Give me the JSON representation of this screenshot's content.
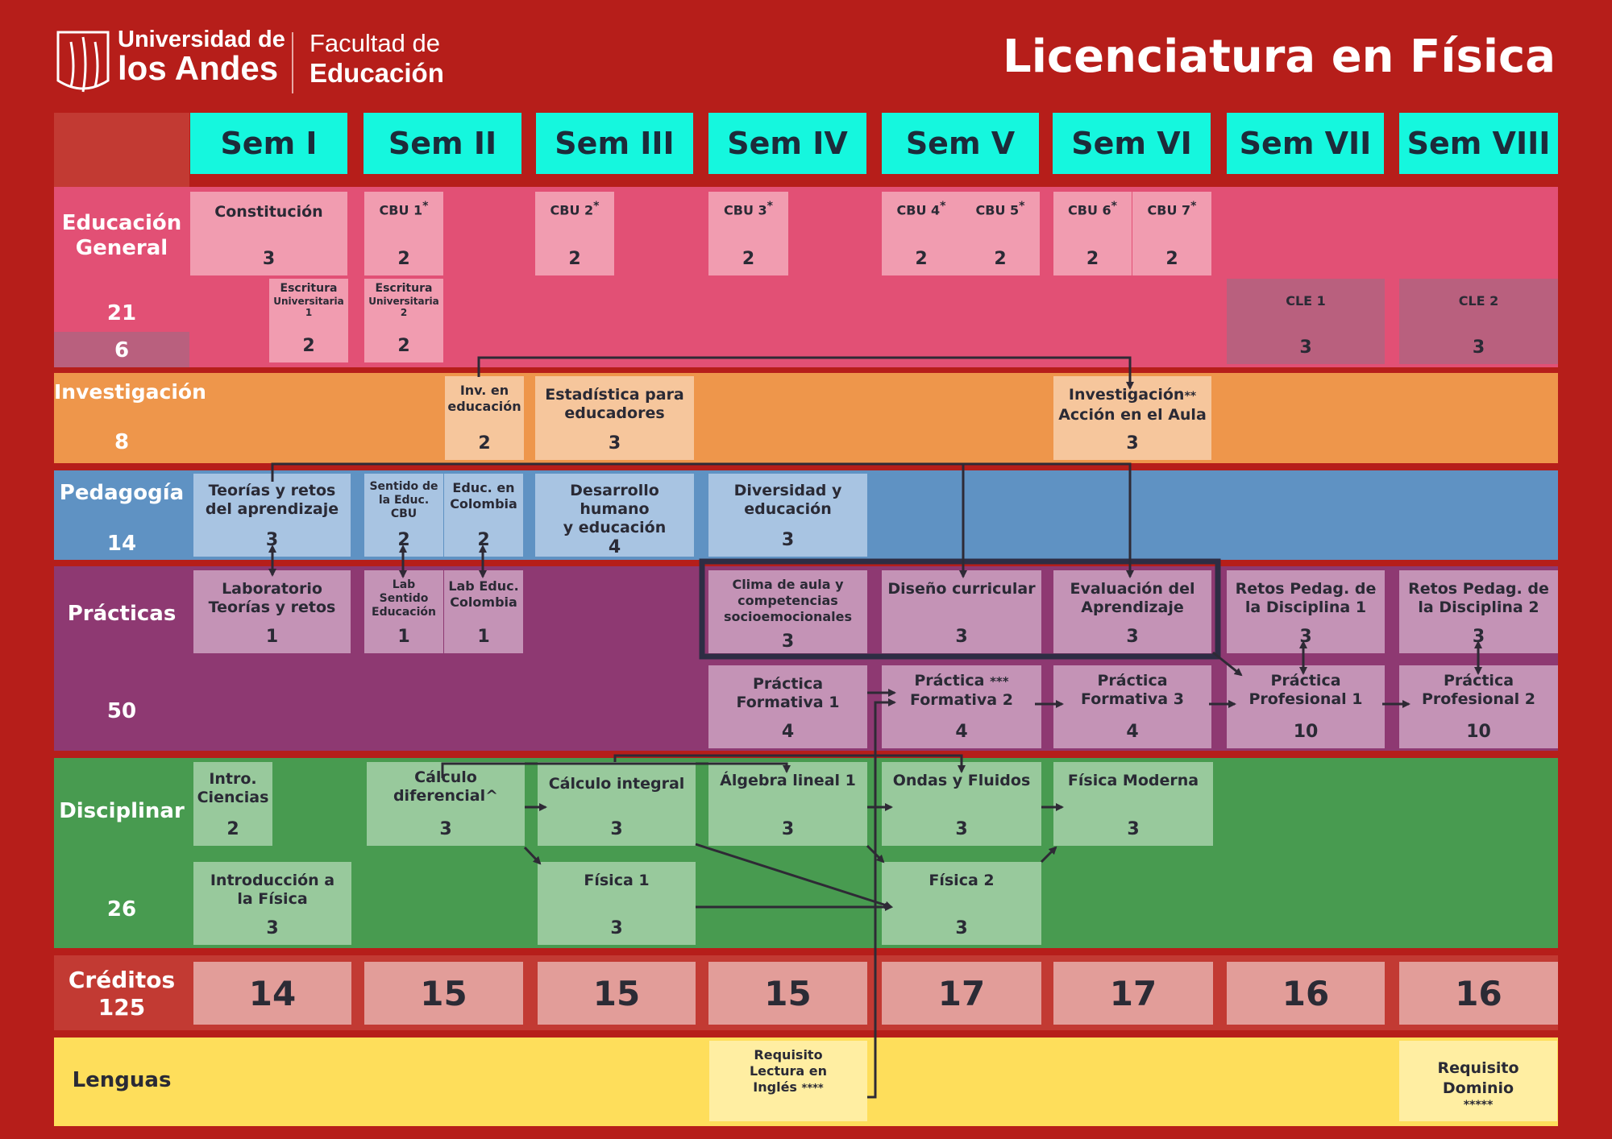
{
  "header": {
    "logo_line1": "Universidad de",
    "logo_line2": "los Andes",
    "faculty_line1": "Facultad de",
    "faculty_line2": "Educación",
    "title": "Licenciatura en Física"
  },
  "semesters": [
    "Sem I",
    "Sem II",
    "Sem III",
    "Sem IV",
    "Sem V",
    "Sem VI",
    "Sem VII",
    "Sem VIII"
  ],
  "areas": {
    "general": {
      "name_line1": "Educación",
      "name_line2": "General",
      "credits": "21",
      "extra": "6"
    },
    "investigacion": {
      "name": "Investigación",
      "credits": "8"
    },
    "pedagogia": {
      "name": "Pedagogía",
      "credits": "14"
    },
    "practicas": {
      "name": "Prácticas",
      "credits": "50"
    },
    "disciplinar": {
      "name": "Disciplinar",
      "credits": "26"
    },
    "creditos": {
      "name": "Créditos",
      "total": "125"
    },
    "lenguas": {
      "name": "Lenguas"
    }
  },
  "courses": {
    "constitucion": {
      "name": "Constitución",
      "credits": "3"
    },
    "cbu1": {
      "name": "CBU 1",
      "mark": "*",
      "credits": "2"
    },
    "cbu2": {
      "name": "CBU 2",
      "mark": "*",
      "credits": "2"
    },
    "cbu3": {
      "name": "CBU 3",
      "mark": "*",
      "credits": "2"
    },
    "cbu4": {
      "name": "CBU 4",
      "mark": "*",
      "credits": "2"
    },
    "cbu5": {
      "name": "CBU 5",
      "mark": "*",
      "credits": "2"
    },
    "cbu6": {
      "name": "CBU 6",
      "mark": "*",
      "credits": "2"
    },
    "cbu7": {
      "name": "CBU 7",
      "mark": "*",
      "credits": "2"
    },
    "escritura1": {
      "name": "Escritura",
      "sub": "Universitaria",
      "num": "1",
      "credits": "2"
    },
    "escritura2": {
      "name": "Escritura",
      "sub": "Universitaria",
      "num": "2",
      "credits": "2"
    },
    "cle1": {
      "name": "CLE 1",
      "credits": "3"
    },
    "cle2": {
      "name": "CLE 2",
      "credits": "3"
    },
    "inv_educacion": {
      "line1": "Inv. en",
      "line2": "educación",
      "credits": "2"
    },
    "estadistica": {
      "line1": "Estadística para",
      "line2": "educadores",
      "credits": "3"
    },
    "inv_accion": {
      "line1": "Investigación",
      "mark": "**",
      "line2": "Acción en el Aula",
      "credits": "3"
    },
    "teorias": {
      "line1": "Teorías y retos",
      "line2": "del aprendizaje",
      "credits": "3"
    },
    "sentido": {
      "line1": "Sentido de",
      "line2": "la Educ. CBU",
      "credits": "2"
    },
    "educ_colombia": {
      "line1": "Educ. en",
      "line2": "Colombia",
      "credits": "2"
    },
    "desarrollo": {
      "line1": "Desarrollo humano",
      "line2": "y educación",
      "credits": "4"
    },
    "diversidad": {
      "line1": "Diversidad y",
      "line2": "educación",
      "credits": "3"
    },
    "lab_teorias": {
      "line1": "Laboratorio",
      "line2": "Teorías y retos",
      "credits": "1"
    },
    "lab_sentido": {
      "line1": "Lab Sentido",
      "line2": "Educación",
      "credits": "1"
    },
    "lab_colombia": {
      "line1": "Lab Educ.",
      "line2": "Colombia",
      "credits": "1"
    },
    "clima": {
      "line1": "Clima de aula y",
      "line2": "competencias",
      "line3": "socioemocionales",
      "credits": "3"
    },
    "diseno": {
      "line1": "Diseño curricular",
      "credits": "3"
    },
    "evaluacion": {
      "line1": "Evaluación del",
      "line2": "Aprendizaje",
      "credits": "3"
    },
    "retos1": {
      "line1": "Retos Pedag. de",
      "line2": "la Disciplina 1",
      "credits": "3"
    },
    "retos2": {
      "line1": "Retos Pedag. de",
      "line2": "la Disciplina 2",
      "credits": "3"
    },
    "pf1": {
      "line1": "Práctica",
      "line2": "Formativa 1",
      "credits": "4"
    },
    "pf2": {
      "line1": "Práctica",
      "mark": "***",
      "line2": "Formativa 2",
      "credits": "4"
    },
    "pf3": {
      "line1": "Práctica",
      "line2": "Formativa 3",
      "credits": "4"
    },
    "pp1": {
      "line1": "Práctica",
      "line2": "Profesional 1",
      "credits": "10"
    },
    "pp2": {
      "line1": "Práctica",
      "line2": "Profesional 2",
      "credits": "10"
    },
    "intro_ciencias": {
      "line1": "Intro.",
      "line2": "Ciencias",
      "credits": "2"
    },
    "calc_dif": {
      "line1": "Cálculo",
      "line2": "diferencial^",
      "credits": "3"
    },
    "calc_int": {
      "line1": "Cálculo integral",
      "credits": "3"
    },
    "algebra": {
      "line1": "Álgebra lineal 1",
      "credits": "3"
    },
    "ondas": {
      "line1": "Ondas y Fluidos",
      "credits": "3"
    },
    "moderna": {
      "line1": "Física Moderna",
      "credits": "3"
    },
    "intro_fisica": {
      "line1": "Introducción a",
      "line2": "la Física",
      "credits": "3"
    },
    "fisica1": {
      "line1": "Física 1",
      "credits": "3"
    },
    "fisica2": {
      "line1": "Física 2",
      "credits": "3"
    },
    "req_ingles": {
      "line1": "Requisito",
      "line2": "Lectura en",
      "line3": "Inglés",
      "mark": "****"
    },
    "req_dominio": {
      "line1": "Requisito",
      "line2": "Dominio",
      "mark": "*****"
    }
  },
  "credits_per_semester": [
    "14",
    "15",
    "15",
    "15",
    "17",
    "17",
    "16",
    "16"
  ],
  "colors": {
    "background": "#B61E1A",
    "semester_header": "#15F7DE",
    "general": "#E25075",
    "investigacion": "#EE964B",
    "pedagogia": "#5F92C3",
    "practicas": "#8E3972",
    "disciplinar": "#489B50",
    "creditos": "#C23A33",
    "lenguas": "#FEDE5B"
  }
}
